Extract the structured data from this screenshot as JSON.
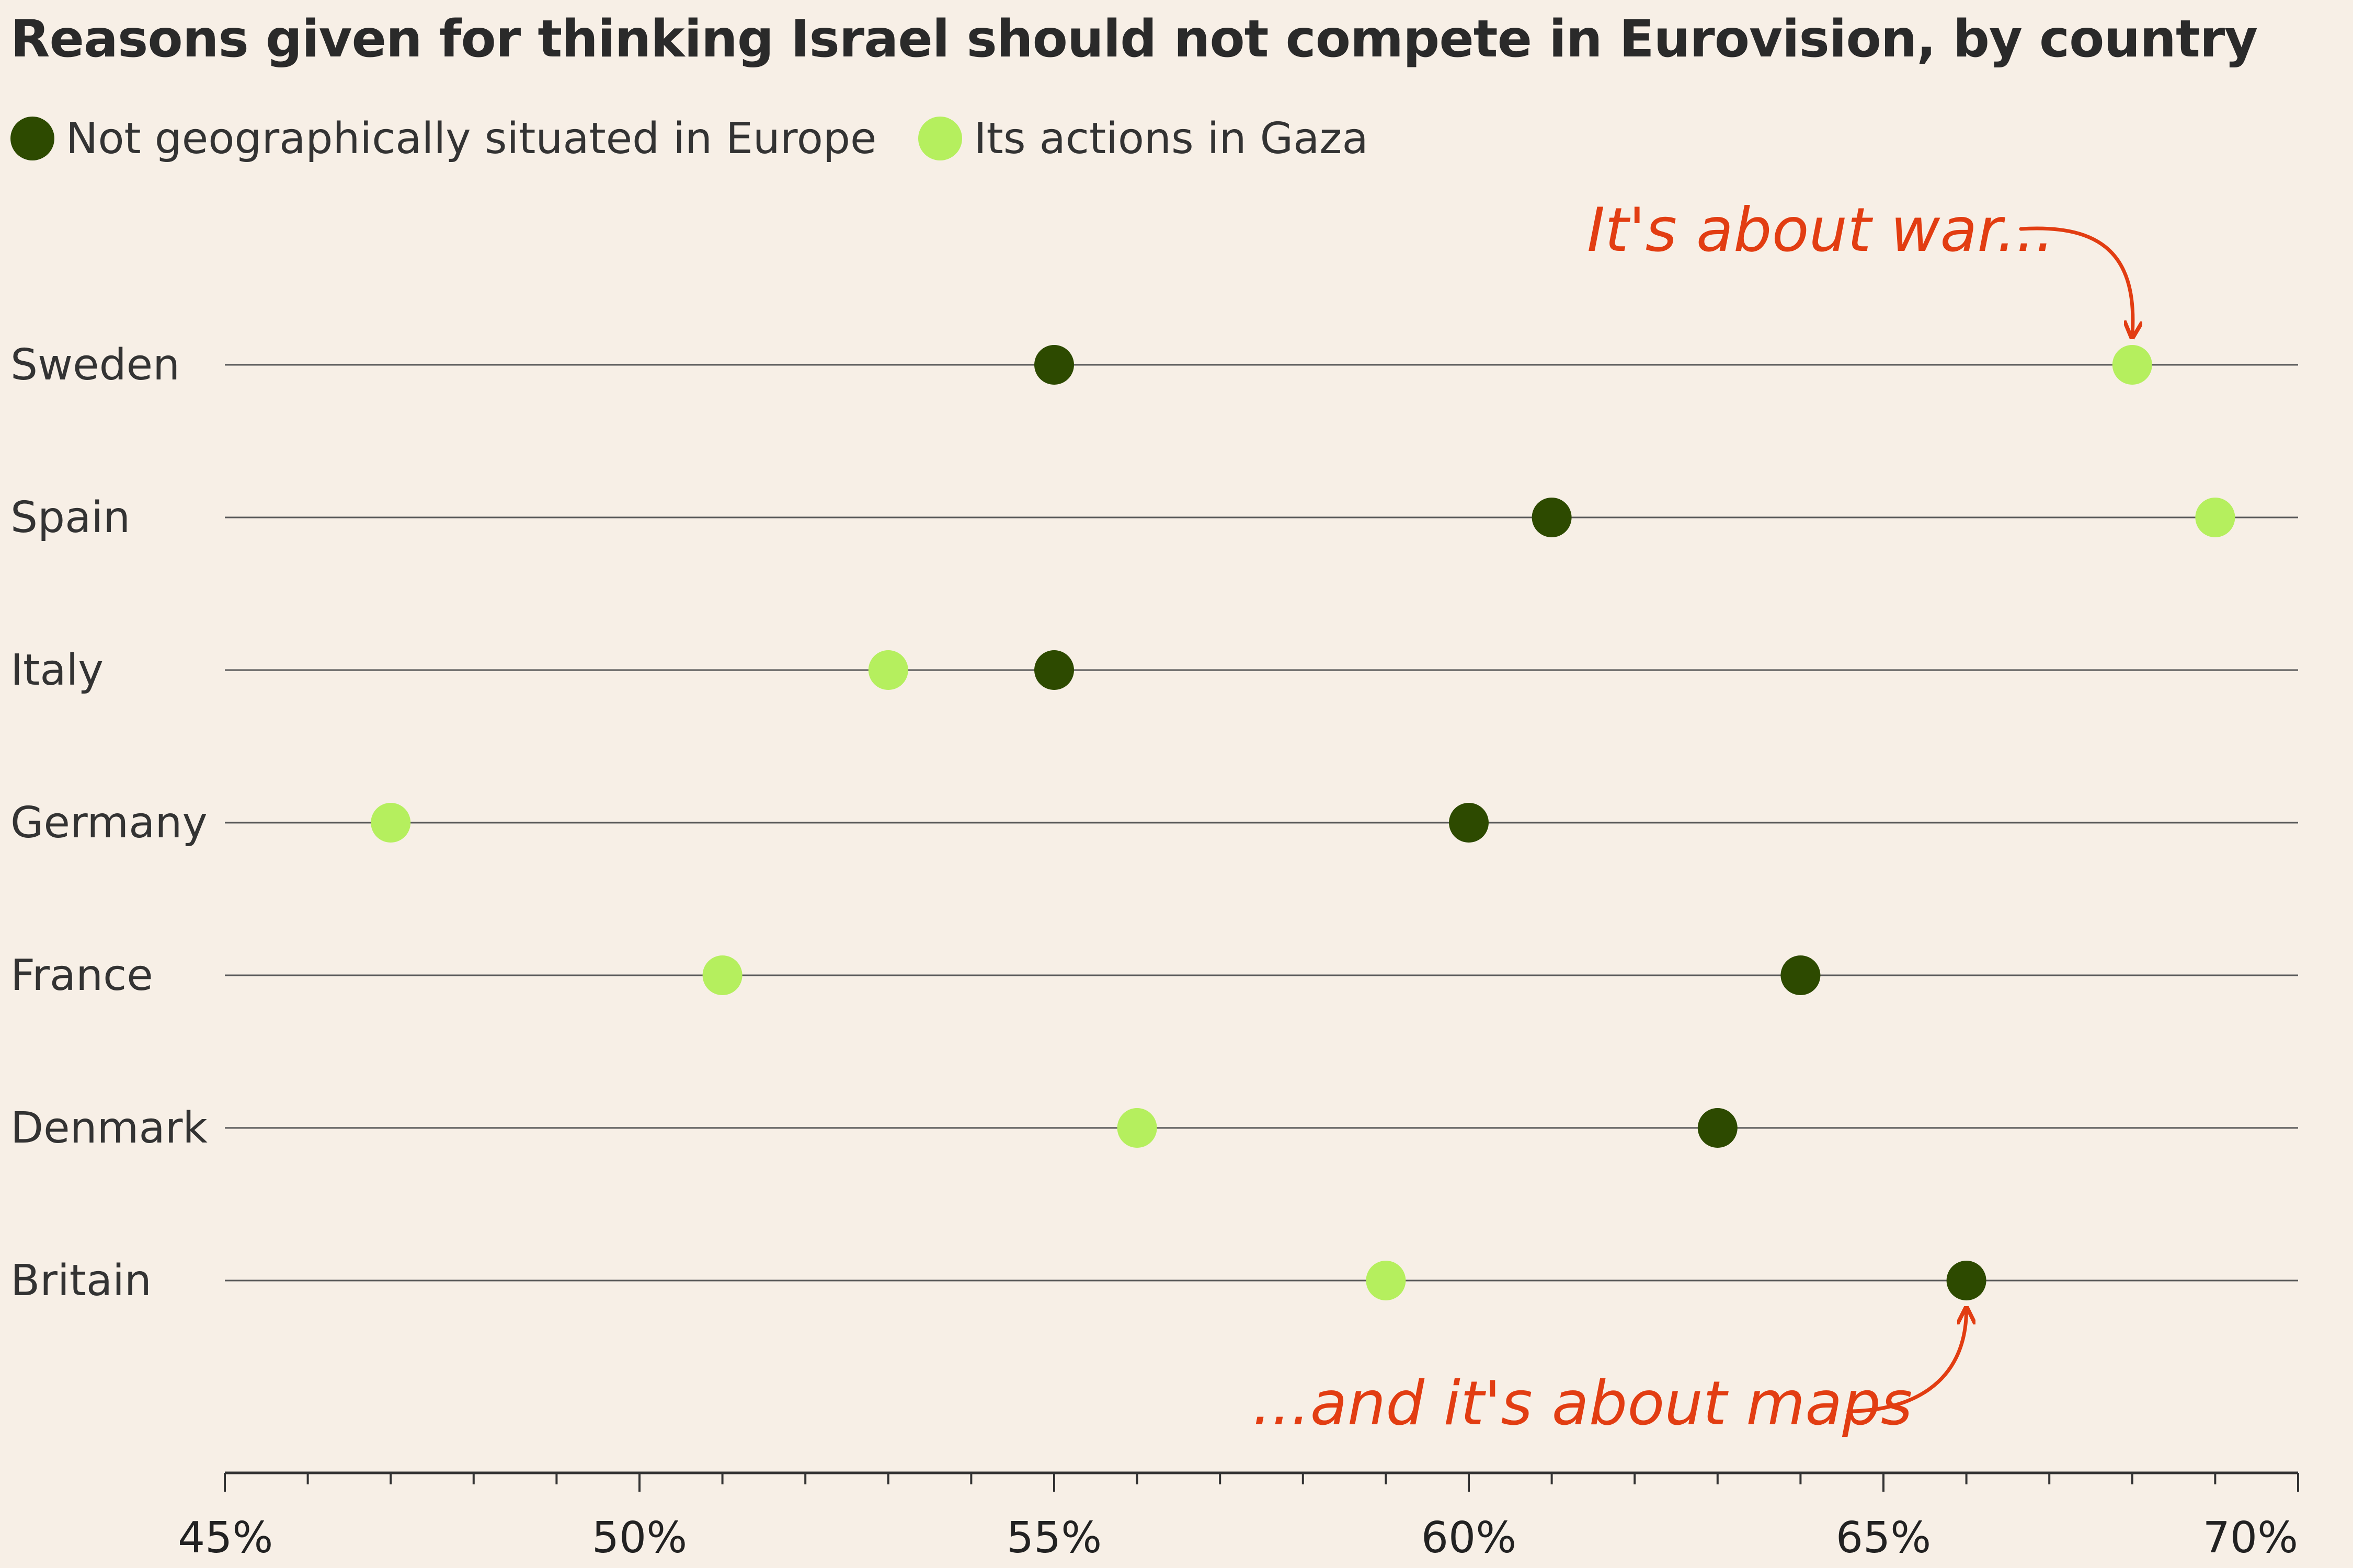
{
  "colors": {
    "background": "#f7efe6",
    "geography": "#2d4a00",
    "gaza": "#b5ef5e",
    "annotation": "#e23d12",
    "gridline": "#5a5a5a",
    "axis": "#333333"
  },
  "chart_data": {
    "type": "scatter",
    "title": "Reasons given for thinking Israel should not compete in Eurovision, by country",
    "categories": [
      "Sweden",
      "Spain",
      "Italy",
      "Germany",
      "France",
      "Denmark",
      "Britain"
    ],
    "series": [
      {
        "name": "Not geographically situated in Europe",
        "color": "#2d4a00",
        "values": [
          55,
          61,
          55,
          60,
          64,
          63,
          66
        ]
      },
      {
        "name": "Its actions in Gaza",
        "color": "#b5ef5e",
        "values": [
          68,
          69,
          53,
          47,
          51,
          56,
          59
        ]
      }
    ],
    "xlim": [
      45,
      70
    ],
    "x_ticks": [
      45,
      50,
      55,
      60,
      65,
      70
    ],
    "x_tick_labels": [
      "45%",
      "50%",
      "55%",
      "60%",
      "65%",
      "70%"
    ],
    "xlabel": "",
    "ylabel": "",
    "legend_position": "top-left",
    "annotations": [
      {
        "text": "It's about war...",
        "points_to": {
          "category": "Sweden",
          "series": "Its actions in Gaza"
        }
      },
      {
        "text": "...and it's about maps",
        "points_to": {
          "category": "Britain",
          "series": "Not geographically situated in Europe"
        }
      }
    ]
  }
}
